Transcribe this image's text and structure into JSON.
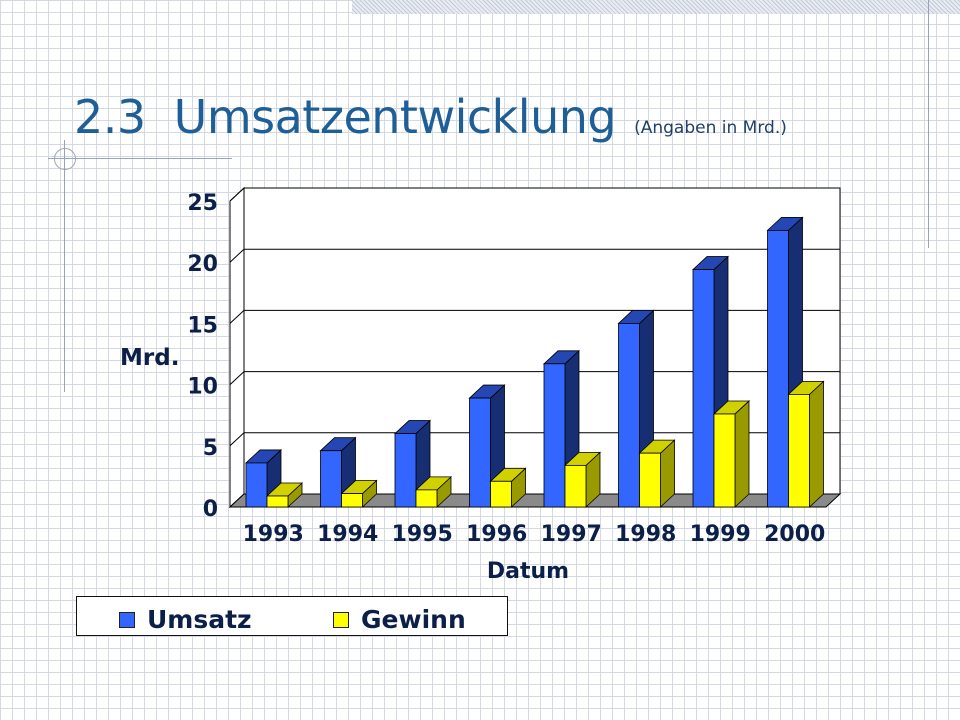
{
  "slide": {
    "number": "2.3",
    "title": "Umsatzentwicklung",
    "subtitle": "(Angaben in Mrd.)"
  },
  "colors": {
    "title": "#1f5f97",
    "axis_text": "#0b1f49",
    "umsatz": "#3366ff",
    "gewinn": "#ffff00"
  },
  "chart_data": {
    "type": "bar",
    "style": "3d-clustered-column",
    "categories": [
      "1993",
      "1994",
      "1995",
      "1996",
      "1997",
      "1998",
      "1999",
      "2000"
    ],
    "series": [
      {
        "name": "Umsatz",
        "values": [
          3.6,
          4.6,
          6.0,
          8.9,
          11.7,
          15.0,
          19.4,
          22.6
        ]
      },
      {
        "name": "Gewinn",
        "values": [
          0.9,
          1.1,
          1.4,
          2.1,
          3.4,
          4.4,
          7.6,
          9.2
        ]
      }
    ],
    "xlabel": "Datum",
    "ylabel": "Mrd.",
    "ylim": [
      0,
      25
    ],
    "yticks": [
      "0",
      "5",
      "10",
      "15",
      "20",
      "25"
    ],
    "grid": true,
    "legend_position": "bottom-left"
  }
}
